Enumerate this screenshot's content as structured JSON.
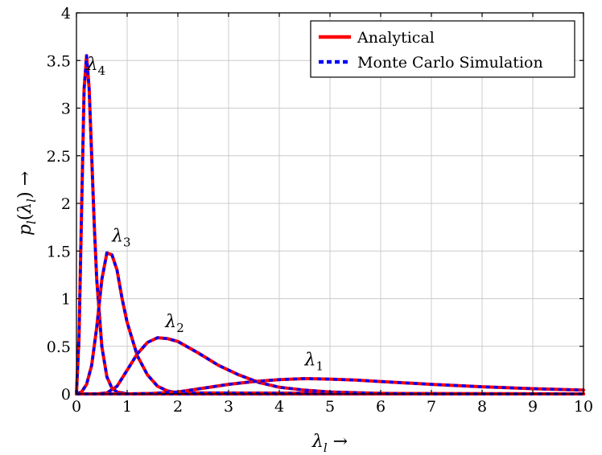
{
  "chart_data": {
    "type": "line",
    "xlabel": "λl →",
    "ylabel": "pl(λl) →",
    "xlim": [
      0,
      10
    ],
    "ylim": [
      0,
      4
    ],
    "x_ticks": [
      "0",
      "1",
      "2",
      "3",
      "4",
      "5",
      "6",
      "7",
      "8",
      "9",
      "10"
    ],
    "y_ticks": [
      "0",
      "0.5",
      "1",
      "1.5",
      "2",
      "2.5",
      "3",
      "3.5",
      "4"
    ],
    "grid": true,
    "legend_position": "top-right",
    "legend": [
      {
        "label": "Analytical",
        "color": "#ff0000",
        "style": "solid"
      },
      {
        "label": "Monte Carlo Simulation",
        "color": "#0000ff",
        "style": "dashed"
      }
    ],
    "series": [
      {
        "name": "λ4",
        "x": [
          0,
          0.05,
          0.1,
          0.15,
          0.2,
          0.25,
          0.3,
          0.35,
          0.4,
          0.5,
          0.6,
          0.7,
          0.8,
          1.0,
          10
        ],
        "y": [
          0,
          0.6,
          1.9,
          3.2,
          3.55,
          3.2,
          2.5,
          1.8,
          1.2,
          0.5,
          0.18,
          0.06,
          0.02,
          0,
          0
        ]
      },
      {
        "name": "λ3",
        "x": [
          0,
          0.1,
          0.2,
          0.3,
          0.4,
          0.5,
          0.6,
          0.7,
          0.8,
          0.9,
          1.0,
          1.2,
          1.4,
          1.6,
          1.8,
          2.0,
          10
        ],
        "y": [
          0,
          0.02,
          0.1,
          0.3,
          0.7,
          1.2,
          1.48,
          1.46,
          1.3,
          1.0,
          0.75,
          0.4,
          0.2,
          0.08,
          0.03,
          0.01,
          0
        ]
      },
      {
        "name": "λ2",
        "x": [
          0,
          0.4,
          0.6,
          0.8,
          1.0,
          1.2,
          1.4,
          1.6,
          1.8,
          2.0,
          2.4,
          2.8,
          3.2,
          3.6,
          4.0,
          4.5,
          5.0,
          6.0,
          7.0,
          10
        ],
        "y": [
          0,
          0,
          0.01,
          0.08,
          0.25,
          0.42,
          0.54,
          0.59,
          0.58,
          0.55,
          0.43,
          0.3,
          0.2,
          0.12,
          0.07,
          0.04,
          0.02,
          0.005,
          0,
          0
        ]
      },
      {
        "name": "λ1",
        "x": [
          0,
          1.0,
          1.5,
          2.0,
          2.5,
          3.0,
          3.5,
          4.0,
          4.5,
          5.0,
          5.5,
          6.0,
          7.0,
          8.0,
          9.0,
          10.0
        ],
        "y": [
          0,
          0,
          0.005,
          0.02,
          0.06,
          0.1,
          0.13,
          0.15,
          0.16,
          0.155,
          0.145,
          0.13,
          0.1,
          0.075,
          0.055,
          0.04
        ]
      }
    ],
    "annotations": [
      {
        "text": "λ4",
        "base": "λ",
        "sub": "4",
        "x": 0.2,
        "y": 3.4
      },
      {
        "text": "λ3",
        "base": "λ",
        "sub": "3",
        "x": 0.7,
        "y": 1.6
      },
      {
        "text": "λ2",
        "base": "λ",
        "sub": "2",
        "x": 1.75,
        "y": 0.7
      },
      {
        "text": "λ1",
        "base": "λ",
        "sub": "1",
        "x": 4.5,
        "y": 0.3
      }
    ]
  }
}
